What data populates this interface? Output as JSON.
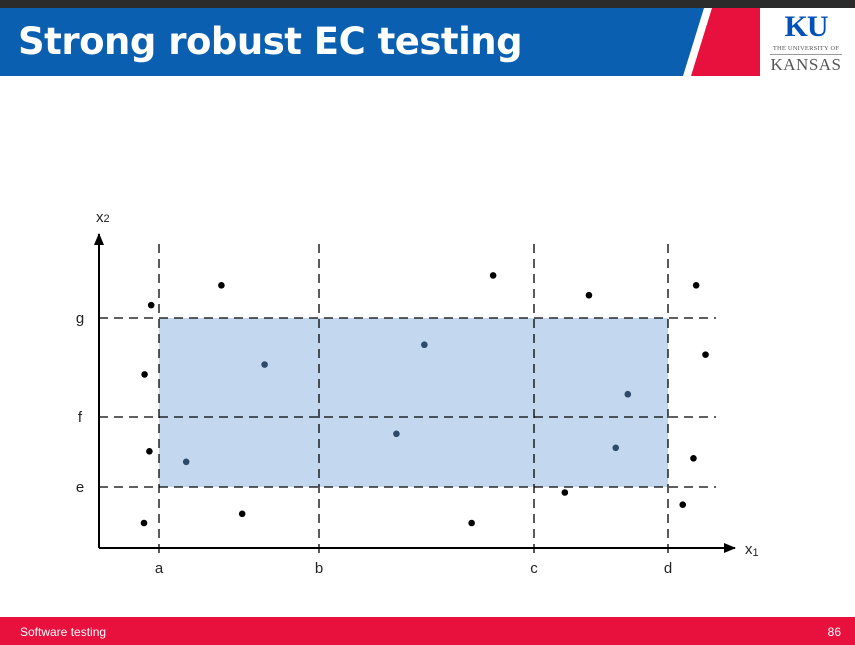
{
  "slide": {
    "title": "Strong robust EC testing",
    "footer_label": "Software testing",
    "page_number": "86"
  },
  "logo": {
    "mark": "KU",
    "line1": "THE UNIVERSITY OF",
    "line2": "KANSAS"
  },
  "colors": {
    "header_blue": "#0b5fb0",
    "accent_red": "#e8103d",
    "region_fill": "#c3d8ee",
    "point_inside": "#2e4a6b",
    "point_outside": "#000000"
  },
  "chart_data": {
    "type": "scatter",
    "xlabel": "x",
    "xlabel_sub": "1",
    "ylabel": "x",
    "ylabel_sub": "2",
    "x_boundaries": [
      {
        "label": "a",
        "value": 1
      },
      {
        "label": "b",
        "value": 2
      },
      {
        "label": "c",
        "value": 3
      },
      {
        "label": "d",
        "value": 4
      }
    ],
    "y_boundaries": [
      {
        "label": "e",
        "value": 1
      },
      {
        "label": "f",
        "value": 2
      },
      {
        "label": "g",
        "value": 3
      }
    ],
    "valid_region": {
      "x": [
        1,
        4
      ],
      "y": [
        1,
        3
      ]
    },
    "points": [
      {
        "x": 0.87,
        "y": 3.13,
        "region": "outside"
      },
      {
        "x": 1.39,
        "y": 3.33,
        "region": "outside"
      },
      {
        "x": 2.81,
        "y": 3.43,
        "region": "outside"
      },
      {
        "x": 3.41,
        "y": 3.23,
        "region": "outside"
      },
      {
        "x": 4.21,
        "y": 3.33,
        "region": "outside"
      },
      {
        "x": 0.76,
        "y": 2.43,
        "region": "outside"
      },
      {
        "x": 4.28,
        "y": 2.63,
        "region": "outside"
      },
      {
        "x": 0.84,
        "y": 1.51,
        "region": "outside"
      },
      {
        "x": 4.19,
        "y": 1.41,
        "region": "outside"
      },
      {
        "x": 0.75,
        "y": 0.41,
        "region": "outside"
      },
      {
        "x": 1.52,
        "y": 0.56,
        "region": "outside"
      },
      {
        "x": 2.71,
        "y": 0.41,
        "region": "outside"
      },
      {
        "x": 3.23,
        "y": 0.91,
        "region": "outside"
      },
      {
        "x": 4.11,
        "y": 0.71,
        "region": "outside"
      },
      {
        "x": 1.66,
        "y": 2.53,
        "region": "inside"
      },
      {
        "x": 2.49,
        "y": 2.73,
        "region": "inside"
      },
      {
        "x": 3.7,
        "y": 2.23,
        "region": "inside"
      },
      {
        "x": 1.17,
        "y": 1.36,
        "region": "inside"
      },
      {
        "x": 2.36,
        "y": 1.76,
        "region": "inside"
      },
      {
        "x": 3.61,
        "y": 1.56,
        "region": "inside"
      }
    ]
  }
}
